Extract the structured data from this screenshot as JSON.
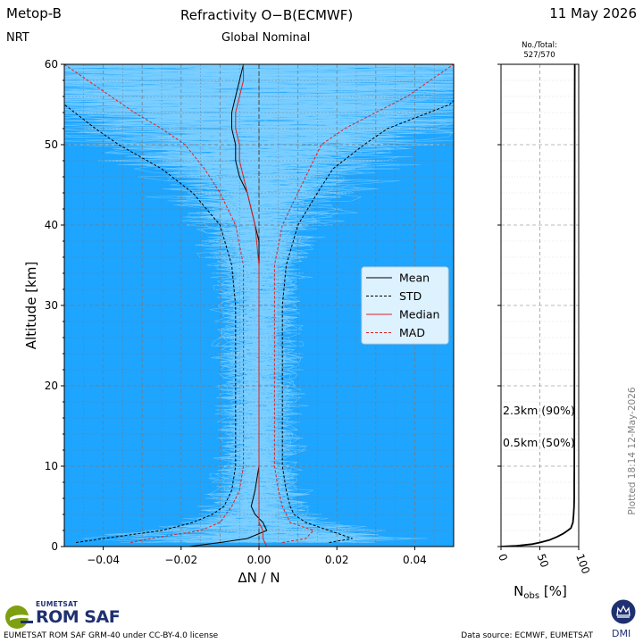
{
  "header": {
    "satellite": "Metop-B",
    "mode": "NRT",
    "title": "Refractivity   O−B(ECMWF)",
    "subtitle": "Global   Nominal",
    "date": "11 May 2026"
  },
  "nobs_header": {
    "label": "No./Total:",
    "value": "527/570"
  },
  "plotted": "Plotted  18:14  12-May-2026",
  "footer": {
    "license": "EUMETSAT ROM SAF GRM-40 under CC-BY-4.0 license",
    "source": "Data source: ECMWF, EUMETSAT"
  },
  "logos": {
    "eumetsat": "EUMETSAT",
    "romsaf": "ROM SAF",
    "dmi": "DMI"
  },
  "colors": {
    "profiles": "#1ea5ff",
    "mean": "#000000",
    "std": "#000000",
    "median": "#e02020",
    "mad": "#e02020",
    "logo_green": "#7ea010",
    "logo_blue": "#1f3070"
  },
  "chart_data": [
    {
      "type": "line",
      "xlabel": "ΔN / N",
      "ylabel": "Altitude [km]",
      "xlim": [
        -0.05,
        0.05
      ],
      "ylim": [
        0,
        60
      ],
      "xticks": [
        -0.04,
        -0.02,
        0.0,
        0.02,
        0.04
      ],
      "xtick_labels": [
        "−0.04",
        "−0.02",
        "0.00",
        "0.02",
        "0.04"
      ],
      "yticks": [
        0,
        10,
        20,
        30,
        40,
        50,
        60
      ],
      "ytick_labels": [
        "0",
        "10",
        "20",
        "30",
        "40",
        "50",
        "60"
      ],
      "grid": true,
      "legend_position": "center-right",
      "background_profiles": {
        "count": 527,
        "note_color_key": "profiles"
      },
      "series": [
        {
          "name": "Mean",
          "style": "solid",
          "color": "#000000",
          "y": [
            0,
            0.5,
            1,
            2,
            3,
            4,
            5,
            7,
            10,
            15,
            20,
            25,
            30,
            35,
            38,
            40,
            42,
            44,
            46,
            48,
            50,
            52,
            54,
            56,
            58,
            60
          ],
          "x": [
            -0.018,
            -0.01,
            -0.003,
            0.002,
            0.001,
            -0.001,
            -0.002,
            -0.001,
            0.0,
            0.0,
            0.0,
            0.0,
            0.0,
            0.0,
            0.0,
            -0.001,
            -0.002,
            -0.003,
            -0.005,
            -0.006,
            -0.006,
            -0.007,
            -0.007,
            -0.006,
            -0.005,
            -0.004
          ]
        },
        {
          "name": "STD",
          "style": "dashed",
          "color": "#000000",
          "y": [
            0.5,
            1,
            2,
            3,
            4,
            5,
            7,
            10,
            15,
            20,
            25,
            30,
            35,
            40,
            44,
            47,
            50,
            52,
            55,
            58,
            60
          ],
          "x": [
            -0.047,
            -0.04,
            -0.025,
            -0.017,
            -0.012,
            -0.009,
            -0.007,
            -0.006,
            -0.006,
            -0.006,
            -0.006,
            -0.006,
            -0.007,
            -0.01,
            -0.017,
            -0.025,
            -0.036,
            -0.042,
            -0.05,
            -0.055,
            -0.06
          ],
          "x_right": [
            0.018,
            0.024,
            0.018,
            0.012,
            0.009,
            0.008,
            0.007,
            0.006,
            0.006,
            0.006,
            0.006,
            0.006,
            0.007,
            0.01,
            0.015,
            0.019,
            0.027,
            0.033,
            0.049,
            0.055,
            0.06
          ]
        },
        {
          "name": "Median",
          "style": "solid",
          "color": "#e02020",
          "y": [
            0,
            1,
            2,
            3,
            5,
            10,
            20,
            30,
            35,
            40,
            42,
            44,
            46,
            48,
            50,
            52,
            54,
            56,
            58,
            60
          ],
          "x": [
            0.002,
            0.001,
            0.001,
            0.0,
            0.0,
            0.0,
            0.0,
            0.0,
            0.0,
            -0.001,
            -0.002,
            -0.003,
            -0.004,
            -0.005,
            -0.005,
            -0.006,
            -0.006,
            -0.005,
            -0.004,
            -0.004
          ]
        },
        {
          "name": "MAD",
          "style": "dashed",
          "color": "#e02020",
          "y": [
            0.5,
            1,
            2,
            3,
            5,
            7,
            10,
            15,
            20,
            25,
            30,
            35,
            40,
            44,
            47,
            50,
            52,
            54,
            56,
            58,
            60
          ],
          "x": [
            -0.033,
            -0.028,
            -0.015,
            -0.01,
            -0.007,
            -0.005,
            -0.004,
            -0.004,
            -0.004,
            -0.004,
            -0.004,
            -0.004,
            -0.006,
            -0.01,
            -0.014,
            -0.019,
            -0.025,
            -0.032,
            -0.038,
            -0.044,
            -0.05
          ],
          "x_right": [
            0.006,
            0.012,
            0.014,
            0.008,
            0.006,
            0.005,
            0.004,
            0.004,
            0.004,
            0.004,
            0.004,
            0.004,
            0.006,
            0.01,
            0.013,
            0.016,
            0.022,
            0.03,
            0.038,
            0.044,
            0.05
          ]
        }
      ]
    },
    {
      "type": "line",
      "xlabel": "N_obs [%]",
      "xlim": [
        0,
        100
      ],
      "ylim": [
        0,
        60
      ],
      "xticks": [
        0,
        50,
        100
      ],
      "xtick_labels": [
        "0",
        "50",
        "100"
      ],
      "annotations": [
        "2.3km  (90%)",
        "0.5km  (50%)"
      ],
      "series": [
        {
          "name": "N_obs",
          "y": [
            0,
            0.1,
            0.3,
            0.5,
            0.8,
            1.2,
            1.6,
            2.0,
            2.3,
            3,
            4,
            5,
            6,
            8,
            10,
            20,
            30,
            40,
            50,
            55,
            60
          ],
          "x": [
            0,
            20,
            40,
            50,
            62,
            72,
            80,
            86,
            90,
            92.5,
            93.5,
            94,
            94.2,
            94.3,
            94.4,
            94.5,
            94.6,
            94.7,
            94.8,
            94.8,
            94.9
          ]
        }
      ]
    }
  ]
}
